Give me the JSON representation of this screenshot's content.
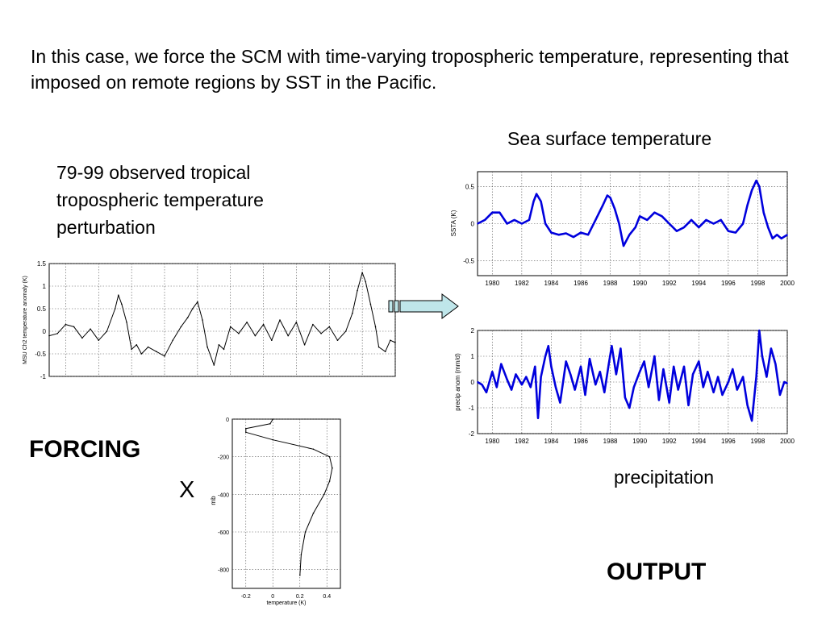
{
  "slide": {
    "intro": "In this case, we force the SCM with time-varying tropospheric temperature, representing that imposed on remote regions by SST in the Pacific.",
    "sst_caption": "Sea surface temperature",
    "obs_caption": "79-99 observed tropical tropospheric temperature perturbation",
    "forcing_label": "FORCING",
    "times_label": "X",
    "precip_caption": "precipitation",
    "output_label": "OUTPUT"
  },
  "chart_data": [
    {
      "id": "msu",
      "type": "line",
      "ylabel": "MSU Ch2 temperature anomaly (K)",
      "xlabel": "",
      "xlim": [
        1979,
        2000
      ],
      "ylim": [
        -1,
        1.5
      ],
      "yticks": [
        -1,
        -0.5,
        0,
        0.5,
        1,
        1.5
      ],
      "ytick_labels": [
        "-1",
        "-0.5",
        "0",
        "0.5",
        "1",
        "1.5"
      ],
      "grid": true,
      "color": "#000000",
      "x": [
        1979.0,
        1979.5,
        1980.0,
        1980.5,
        1981.0,
        1981.5,
        1982.0,
        1982.5,
        1983.0,
        1983.2,
        1983.4,
        1983.7,
        1984.0,
        1984.3,
        1984.6,
        1985.0,
        1985.5,
        1986.0,
        1986.5,
        1987.0,
        1987.4,
        1987.7,
        1988.0,
        1988.3,
        1988.6,
        1989.0,
        1989.3,
        1989.6,
        1990.0,
        1990.5,
        1991.0,
        1991.5,
        1992.0,
        1992.5,
        1993.0,
        1993.5,
        1994.0,
        1994.5,
        1995.0,
        1995.5,
        1996.0,
        1996.5,
        1997.0,
        1997.4,
        1997.7,
        1998.0,
        1998.2,
        1998.5,
        1998.8,
        1999.0,
        1999.4,
        1999.7,
        2000.0
      ],
      "y": [
        -0.1,
        -0.05,
        0.15,
        0.1,
        -0.15,
        0.05,
        -0.2,
        0.0,
        0.5,
        0.8,
        0.6,
        0.2,
        -0.4,
        -0.3,
        -0.5,
        -0.35,
        -0.45,
        -0.55,
        -0.2,
        0.1,
        0.3,
        0.5,
        0.65,
        0.25,
        -0.35,
        -0.75,
        -0.3,
        -0.4,
        0.1,
        -0.05,
        0.2,
        -0.1,
        0.15,
        -0.2,
        0.25,
        -0.1,
        0.2,
        -0.3,
        0.15,
        -0.05,
        0.1,
        -0.2,
        0.0,
        0.4,
        0.9,
        1.3,
        1.1,
        0.6,
        0.1,
        -0.35,
        -0.45,
        -0.2,
        -0.25
      ]
    },
    {
      "id": "sst",
      "type": "line",
      "ylabel": "SSTA (K)",
      "xlabel": "",
      "xlim": [
        1979,
        2000
      ],
      "ylim": [
        -0.7,
        0.7
      ],
      "yticks": [
        0.5,
        0,
        -0.5
      ],
      "ytick_labels": [
        "0.5",
        "0",
        "-0.5"
      ],
      "xticks": [
        1980,
        1982,
        1984,
        1986,
        1988,
        1990,
        1992,
        1994,
        1996,
        1998,
        2000
      ],
      "xtick_labels": [
        "1980",
        "1982",
        "1984",
        "1986",
        "1988",
        "1990",
        "1992",
        "1994",
        "1996",
        "1998",
        "2000"
      ],
      "grid": true,
      "color": "#0000dd",
      "x": [
        1979.0,
        1979.5,
        1980.0,
        1980.5,
        1981.0,
        1981.5,
        1982.0,
        1982.5,
        1982.8,
        1983.0,
        1983.3,
        1983.6,
        1984.0,
        1984.5,
        1985.0,
        1985.5,
        1986.0,
        1986.5,
        1987.0,
        1987.5,
        1987.8,
        1988.0,
        1988.3,
        1988.6,
        1988.9,
        1989.3,
        1989.7,
        1990.0,
        1990.5,
        1991.0,
        1991.5,
        1992.0,
        1992.5,
        1993.0,
        1993.5,
        1994.0,
        1994.5,
        1995.0,
        1995.5,
        1996.0,
        1996.5,
        1997.0,
        1997.3,
        1997.6,
        1997.9,
        1998.1,
        1998.4,
        1998.7,
        1999.0,
        1999.3,
        1999.6,
        2000.0
      ],
      "y": [
        0.0,
        0.05,
        0.15,
        0.15,
        0.0,
        0.05,
        0.0,
        0.05,
        0.3,
        0.4,
        0.3,
        0.0,
        -0.12,
        -0.15,
        -0.13,
        -0.18,
        -0.12,
        -0.15,
        0.05,
        0.25,
        0.38,
        0.35,
        0.2,
        0.0,
        -0.3,
        -0.15,
        -0.05,
        0.1,
        0.05,
        0.15,
        0.1,
        0.0,
        -0.1,
        -0.05,
        0.05,
        -0.05,
        0.05,
        0.0,
        0.05,
        -0.1,
        -0.12,
        0.0,
        0.25,
        0.45,
        0.58,
        0.5,
        0.15,
        -0.05,
        -0.2,
        -0.15,
        -0.2,
        -0.15
      ]
    },
    {
      "id": "precip",
      "type": "line",
      "ylabel": "precip anom (mm/d)",
      "xlabel": "",
      "xlim": [
        1979,
        2000
      ],
      "ylim": [
        -2,
        2
      ],
      "yticks": [
        2,
        1,
        0,
        -1,
        -2
      ],
      "ytick_labels": [
        "2",
        "1",
        "0",
        "-1",
        "-2"
      ],
      "xticks": [
        1980,
        1982,
        1984,
        1986,
        1988,
        1990,
        1992,
        1994,
        1996,
        1998,
        2000
      ],
      "xtick_labels": [
        "1980",
        "1982",
        "1984",
        "1986",
        "1988",
        "1990",
        "1992",
        "1994",
        "1996",
        "1998",
        "2000"
      ],
      "grid": true,
      "color": "#0000dd",
      "x": [
        1979.0,
        1979.3,
        1979.6,
        1980.0,
        1980.3,
        1980.6,
        1981.0,
        1981.3,
        1981.6,
        1982.0,
        1982.3,
        1982.6,
        1982.9,
        1983.1,
        1983.3,
        1983.6,
        1983.8,
        1984.0,
        1984.3,
        1984.6,
        1985.0,
        1985.3,
        1985.6,
        1986.0,
        1986.3,
        1986.6,
        1987.0,
        1987.3,
        1987.6,
        1987.9,
        1988.1,
        1988.4,
        1988.7,
        1989.0,
        1989.3,
        1989.6,
        1990.0,
        1990.3,
        1990.6,
        1991.0,
        1991.3,
        1991.6,
        1992.0,
        1992.3,
        1992.6,
        1993.0,
        1993.3,
        1993.6,
        1994.0,
        1994.3,
        1994.6,
        1995.0,
        1995.3,
        1995.6,
        1996.0,
        1996.3,
        1996.6,
        1997.0,
        1997.3,
        1997.6,
        1997.9,
        1998.1,
        1998.3,
        1998.6,
        1998.9,
        1999.2,
        1999.5,
        1999.8,
        2000.0
      ],
      "y": [
        0.0,
        -0.1,
        -0.4,
        0.4,
        -0.2,
        0.7,
        0.1,
        -0.3,
        0.3,
        -0.1,
        0.2,
        -0.2,
        0.6,
        -1.4,
        0.2,
        1.0,
        1.4,
        0.6,
        -0.2,
        -0.8,
        0.8,
        0.3,
        -0.3,
        0.6,
        -0.5,
        0.9,
        -0.1,
        0.4,
        -0.4,
        0.7,
        1.4,
        0.3,
        1.3,
        -0.6,
        -1.0,
        -0.2,
        0.4,
        0.8,
        -0.2,
        1.0,
        -0.7,
        0.5,
        -0.8,
        0.6,
        -0.3,
        0.6,
        -0.9,
        0.3,
        0.8,
        -0.2,
        0.4,
        -0.4,
        0.2,
        -0.5,
        0.0,
        0.5,
        -0.3,
        0.2,
        -0.9,
        -1.5,
        0.2,
        2.0,
        1.0,
        0.2,
        1.3,
        0.7,
        -0.5,
        0.0,
        -0.05
      ]
    },
    {
      "id": "profile",
      "type": "line",
      "xlabel": "temperature (K)",
      "ylabel": "mb",
      "xlim": [
        -0.3,
        0.5
      ],
      "ylim": [
        0,
        900
      ],
      "yticks": [
        0,
        200,
        400,
        600,
        800
      ],
      "ytick_labels": [
        "0",
        "-200",
        "-400",
        "-600",
        "-800"
      ],
      "xticks": [
        -0.2,
        0,
        0.2,
        0.4
      ],
      "xtick_labels": [
        "-0.2",
        "0",
        "0.2",
        "0.4"
      ],
      "grid": true,
      "color": "#000000",
      "x": [
        0.0,
        -0.02,
        -0.2,
        -0.2,
        0.0,
        0.3,
        0.42,
        0.44,
        0.42,
        0.38,
        0.3,
        0.24,
        0.21,
        0.2
      ],
      "y": [
        0,
        25,
        50,
        70,
        110,
        160,
        200,
        260,
        330,
        400,
        500,
        600,
        720,
        830
      ]
    }
  ]
}
